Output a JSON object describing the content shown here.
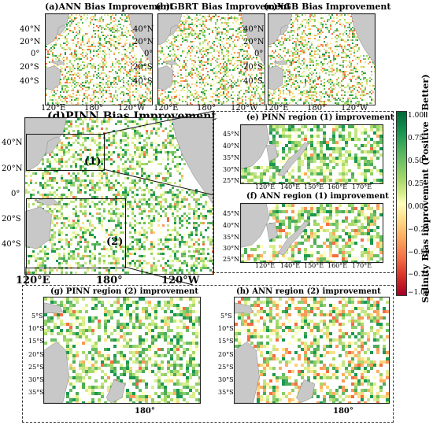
{
  "panels": {
    "a": {
      "title": "(a)ANN Bias Improvement"
    },
    "b": {
      "title": "(b)GBRT Bias Improvement"
    },
    "c": {
      "title": "(c)XGB Bias Improvement"
    },
    "d": {
      "title": "(d)PINN Bias Improvement",
      "box1": "(1)",
      "box2": "(2)"
    },
    "e": {
      "title": "(e) PINN region (1) improvement"
    },
    "f": {
      "title": "(f) ANN region (1) improvement"
    },
    "g": {
      "title": "(g) PINN region (2) improvement"
    },
    "h": {
      "title": "(h) ANN region (2) improvement"
    }
  },
  "axes": {
    "pacific_lat": [
      "40°N",
      "20°N",
      "0°",
      "20°S",
      "40°S"
    ],
    "pacific_lon": [
      "120°E",
      "180°",
      "120°W"
    ],
    "region1_lat": [
      "45°N",
      "40°N",
      "35°N",
      "30°N",
      "25°N"
    ],
    "region1_lon": [
      "120°E",
      "140°E",
      "150°E",
      "160°E",
      "170°E"
    ],
    "region2_lat": [
      "5°S",
      "10°S",
      "15°S",
      "20°S",
      "25°S",
      "30°S",
      "35°S"
    ],
    "region2_lon": [
      "180°"
    ]
  },
  "colorbar": {
    "label": "Salinity Bias improvement (Positive =Better)",
    "ticks": [
      "1.00",
      "0.75",
      "0.50",
      "0.25",
      "0.00",
      "−0.25",
      "−0.50",
      "−0.75",
      "−1.00"
    ],
    "range": [
      -1.0,
      1.0
    ],
    "colors": {
      "high": "#006837",
      "mid": "#ffffbf",
      "low": "#d7191c"
    }
  },
  "land_color": "#c8c8c8"
}
